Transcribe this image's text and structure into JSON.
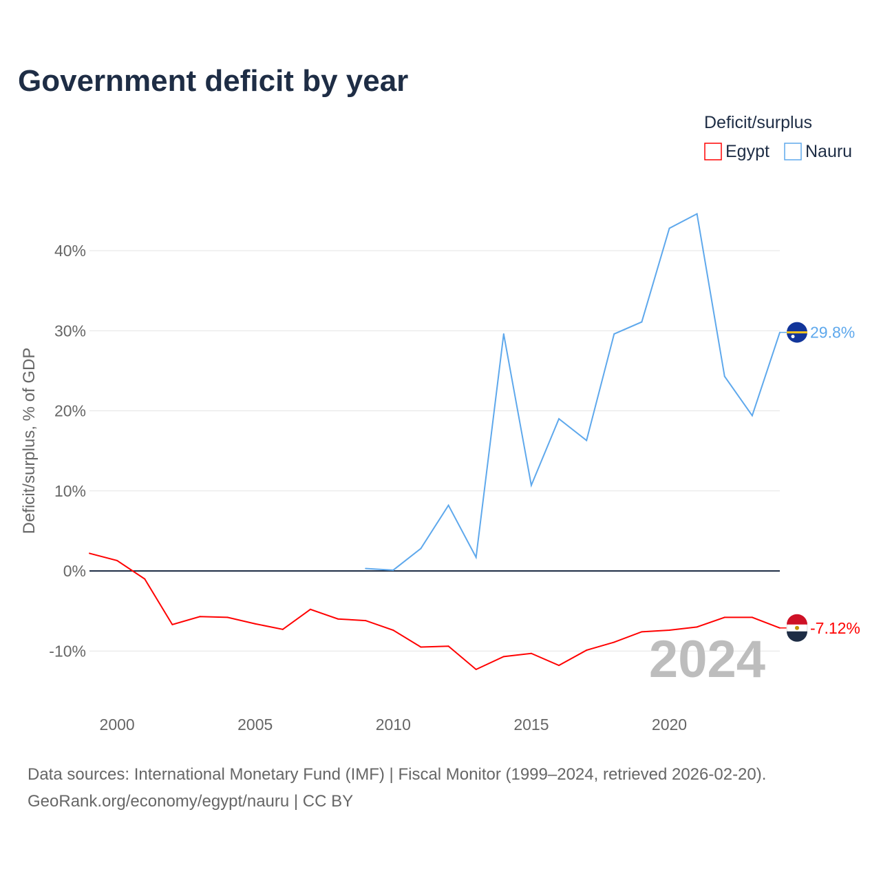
{
  "chart_data": {
    "type": "line",
    "title": "Government deficit by year",
    "ylabel": "Deficit/surplus, % of GDP",
    "xlabel": "",
    "xlim": [
      1999,
      2024
    ],
    "ylim": [
      -15,
      47
    ],
    "yticks": [
      -10,
      0,
      10,
      20,
      30,
      40
    ],
    "ytick_labels": [
      "-10%",
      "0%",
      "10%",
      "20%",
      "30%",
      "40%"
    ],
    "xticks": [
      2000,
      2005,
      2010,
      2015,
      2020
    ],
    "xtick_labels": [
      "2000",
      "2005",
      "2010",
      "2015",
      "2020"
    ],
    "grid": true,
    "legend": {
      "title": "Deficit/surplus",
      "placement": "top-right"
    },
    "watermark_year": "2024",
    "series": [
      {
        "name": "Egypt",
        "color": "#ff0000",
        "end_label": "-7.12%",
        "x": [
          1999,
          2000,
          2001,
          2002,
          2003,
          2004,
          2005,
          2006,
          2007,
          2008,
          2009,
          2010,
          2011,
          2012,
          2013,
          2014,
          2015,
          2016,
          2017,
          2018,
          2019,
          2020,
          2021,
          2022,
          2023,
          2024
        ],
        "values": [
          2.2,
          1.3,
          -1.0,
          -6.7,
          -5.7,
          -5.8,
          -6.6,
          -7.3,
          -4.8,
          -6.0,
          -6.2,
          -7.4,
          -9.5,
          -9.4,
          -12.3,
          -10.7,
          -10.3,
          -11.8,
          -9.9,
          -8.9,
          -7.6,
          -7.4,
          -7.0,
          -5.8,
          -5.8,
          -7.12
        ]
      },
      {
        "name": "Nauru",
        "color": "#5ea8ec",
        "end_label": "29.8%",
        "x": [
          2009,
          2010,
          2011,
          2012,
          2013,
          2014,
          2015,
          2016,
          2017,
          2018,
          2019,
          2020,
          2021,
          2022,
          2023,
          2024
        ],
        "values": [
          0.3,
          0.1,
          2.8,
          8.2,
          1.7,
          29.6,
          10.7,
          19.0,
          16.3,
          29.6,
          31.1,
          42.8,
          44.6,
          24.3,
          19.4,
          29.8
        ]
      }
    ]
  },
  "footer": {
    "source": "Data sources: International Monetary Fund (IMF) | Fiscal Monitor (1999–2024, retrieved 2026-02-20).",
    "credit": "GeoRank.org/economy/egypt/nauru | CC BY"
  }
}
